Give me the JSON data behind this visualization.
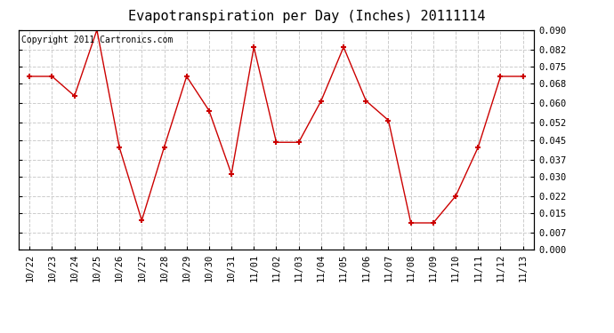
{
  "title": "Evapotranspiration per Day (Inches) 20111114",
  "copyright_text": "Copyright 2011 Cartronics.com",
  "dates": [
    "10/22",
    "10/23",
    "10/24",
    "10/25",
    "10/26",
    "10/27",
    "10/28",
    "10/29",
    "10/30",
    "10/31",
    "11/01",
    "11/02",
    "11/03",
    "11/04",
    "11/05",
    "11/06",
    "11/07",
    "11/08",
    "11/09",
    "11/10",
    "11/11",
    "11/12",
    "11/13"
  ],
  "values": [
    0.071,
    0.071,
    0.063,
    0.09,
    0.042,
    0.012,
    0.042,
    0.071,
    0.057,
    0.031,
    0.083,
    0.044,
    0.044,
    0.061,
    0.083,
    0.061,
    0.053,
    0.011,
    0.011,
    0.022,
    0.042,
    0.071,
    0.071
  ],
  "line_color": "#cc0000",
  "marker": "+",
  "marker_size": 5,
  "ylim": [
    0.0,
    0.09
  ],
  "yticks": [
    0.0,
    0.007,
    0.015,
    0.022,
    0.03,
    0.037,
    0.045,
    0.052,
    0.06,
    0.068,
    0.075,
    0.082,
    0.09
  ],
  "background_color": "#ffffff",
  "grid_color": "#cccccc",
  "title_fontsize": 11,
  "copyright_fontsize": 7,
  "tick_fontsize": 7.5
}
